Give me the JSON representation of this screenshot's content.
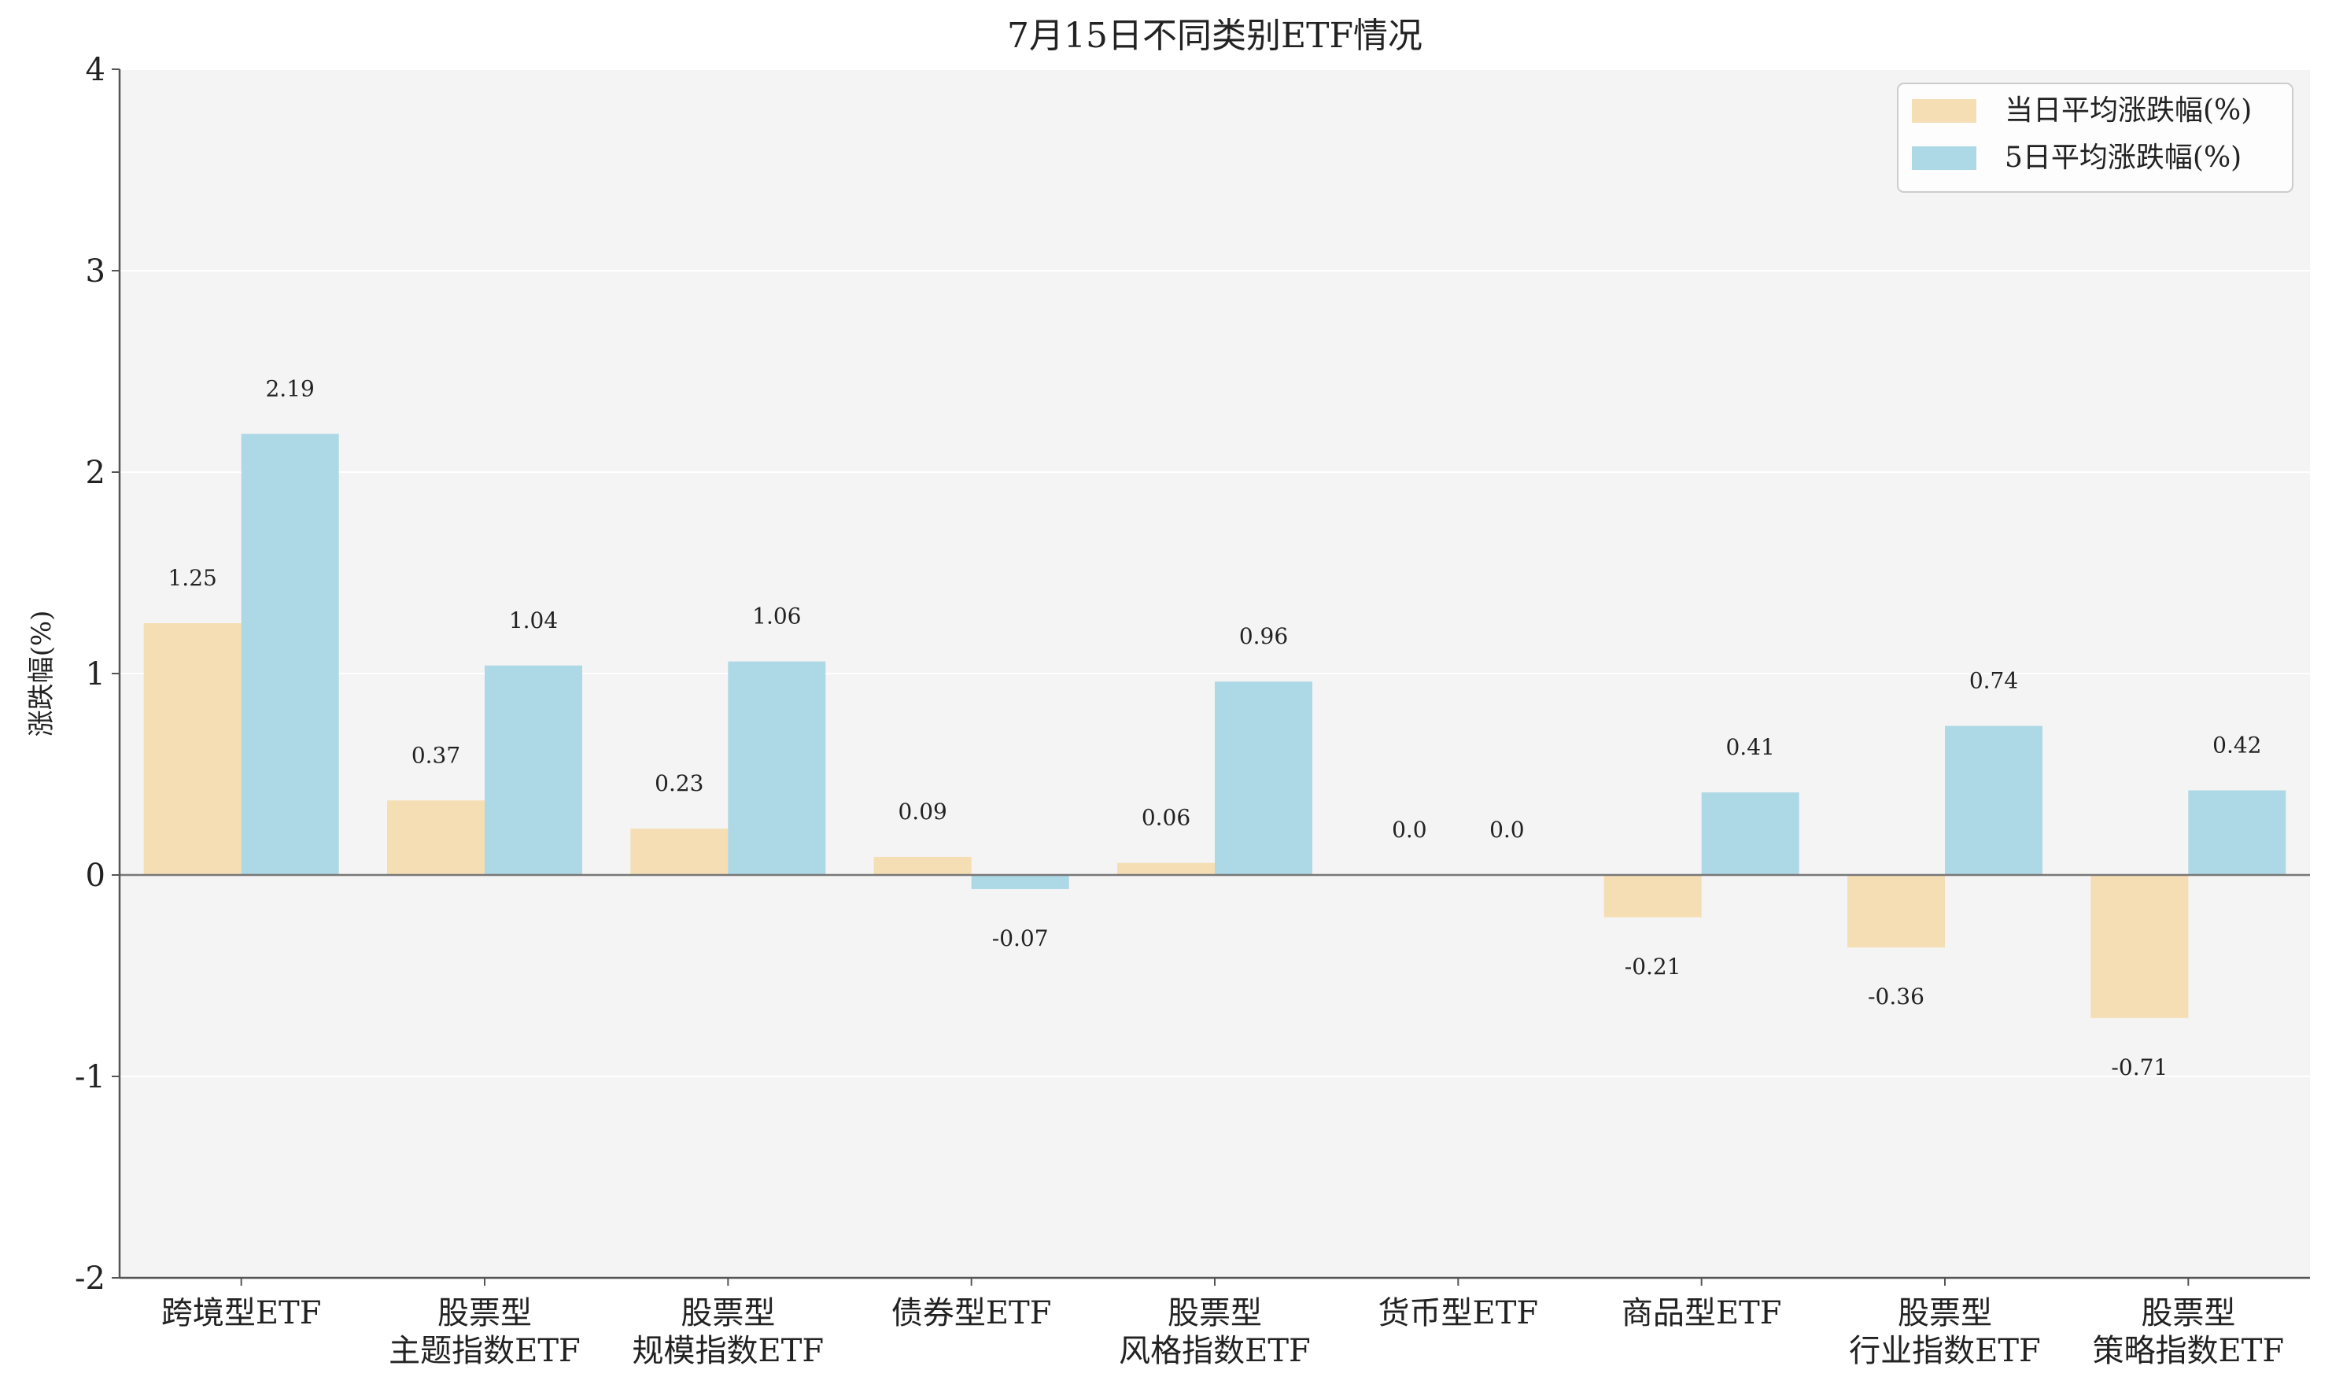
{
  "chart_data": {
    "type": "bar",
    "title": "7月15日不同类别ETF情况",
    "ylabel": "涨跌幅(%)",
    "ylim": [
      -2,
      4
    ],
    "yticks": [
      -2,
      -1,
      0,
      1,
      2,
      3,
      4
    ],
    "grid": true,
    "legend_position": "top-right",
    "categories": [
      [
        "跨境型ETF"
      ],
      [
        "股票型",
        "主题指数ETF"
      ],
      [
        "股票型",
        "规模指数ETF"
      ],
      [
        "债券型ETF"
      ],
      [
        "股票型",
        "风格指数ETF"
      ],
      [
        "货币型ETF"
      ],
      [
        "商品型ETF"
      ],
      [
        "股票型",
        "行业指数ETF"
      ],
      [
        "股票型",
        "策略指数ETF"
      ]
    ],
    "series": [
      {
        "name": "当日平均涨跌幅(%)",
        "color": "#f5deb3",
        "values": [
          1.25,
          0.37,
          0.23,
          0.09,
          0.06,
          0.0,
          -0.21,
          -0.36,
          -0.71
        ],
        "labels": [
          "1.25",
          "0.37",
          "0.23",
          "0.09",
          "0.06",
          "0.0",
          "-0.21",
          "-0.36",
          "-0.71"
        ]
      },
      {
        "name": "5日平均涨跌幅(%)",
        "color": "#add8e6",
        "values": [
          2.19,
          1.04,
          1.06,
          -0.07,
          0.96,
          0.0,
          0.41,
          0.74,
          0.42
        ],
        "labels": [
          "2.19",
          "1.04",
          "1.06",
          "-0.07",
          "0.96",
          "0.0",
          "0.41",
          "0.74",
          "0.42"
        ]
      }
    ]
  }
}
